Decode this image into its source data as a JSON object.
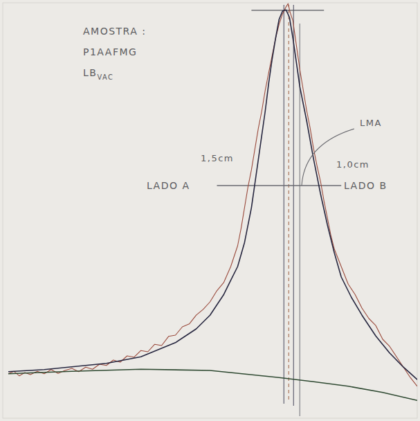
{
  "chart_data": {
    "type": "line",
    "xlim": [
      0,
      600
    ],
    "ylim": [
      0,
      100
    ],
    "tick_labels": false,
    "grid": false,
    "series": [
      {
        "color": "#9a4a3c",
        "line_style": "solid",
        "x": [
          8,
          16,
          24,
          32,
          40,
          50,
          60,
          70,
          80,
          90,
          100,
          110,
          120,
          130,
          140,
          150,
          160,
          170,
          180,
          190,
          200,
          210,
          220,
          230,
          240,
          250,
          260,
          270,
          280,
          290,
          300,
          310,
          320,
          330,
          340,
          345,
          350,
          355,
          360,
          365,
          370,
          375,
          380,
          385,
          390,
          395,
          400,
          405,
          410,
          413,
          416,
          420,
          425,
          430,
          435,
          440,
          445,
          450,
          455,
          460,
          465,
          470,
          475,
          480,
          490,
          500,
          510,
          520,
          530,
          540,
          550,
          560,
          570,
          580,
          590,
          600
        ],
        "values": [
          10.7,
          11.3,
          10.2,
          11.0,
          10.5,
          11.3,
          10.7,
          11.7,
          10.8,
          11.5,
          12.0,
          11.2,
          12.3,
          11.8,
          13.0,
          12.7,
          14.0,
          13.5,
          15.0,
          14.7,
          16.3,
          16.0,
          17.8,
          17.5,
          19.7,
          20.0,
          22.0,
          22.7,
          24.8,
          26.2,
          28.0,
          30.7,
          32.7,
          36.5,
          41.5,
          45.7,
          50.7,
          55.7,
          59.8,
          64.8,
          69.8,
          74.0,
          79.0,
          83.2,
          87.3,
          91.5,
          94.8,
          97.3,
          99.0,
          99.8,
          97.7,
          95.7,
          89.8,
          84.0,
          79.0,
          74.0,
          69.8,
          64.8,
          60.7,
          57.0,
          52.3,
          48.2,
          44.0,
          40.7,
          36.5,
          32.3,
          29.8,
          26.5,
          24.0,
          22.3,
          19.0,
          17.3,
          14.8,
          12.3,
          9.8,
          7.7
        ]
      },
      {
        "color": "#26263f",
        "line_style": "solid",
        "x": [
          8,
          60,
          150,
          200,
          250,
          280,
          300,
          320,
          330,
          340,
          350,
          360,
          370,
          380,
          385,
          390,
          395,
          400,
          405,
          410,
          415,
          420,
          425,
          430,
          440,
          450,
          455,
          460,
          470,
          480,
          490,
          505,
          520,
          540,
          560,
          580,
          600
        ],
        "values": [
          11.2,
          11.7,
          13.2,
          14.8,
          18.2,
          21.5,
          24.8,
          29.8,
          33.2,
          36.5,
          42.3,
          50.7,
          62.3,
          74.0,
          80.7,
          86.5,
          91.5,
          96.0,
          98.0,
          98.3,
          96.5,
          91.5,
          85.7,
          79.8,
          71.5,
          62.3,
          58.2,
          54.0,
          46.5,
          39.8,
          34.0,
          29.0,
          24.8,
          19.8,
          15.7,
          12.3,
          9.3
        ]
      },
      {
        "color": "#2f4a32",
        "line_style": "solid",
        "x": [
          8,
          100,
          200,
          300,
          400,
          450,
          500,
          550,
          600
        ],
        "values": [
          10.7,
          11.3,
          11.8,
          11.5,
          9.8,
          8.8,
          7.7,
          6.2,
          4.3
        ]
      }
    ],
    "hlines": [
      {
        "y": 56.0,
        "x": [
          310,
          490
        ],
        "color": "#6a6a70",
        "line_style": "solid"
      },
      {
        "y": 98.2,
        "x": [
          360,
          465
        ],
        "color": "#55555c",
        "line_style": "solid"
      }
    ],
    "vlines": [
      {
        "x": 407,
        "y": [
          3.5,
          99.5
        ],
        "color": "#6a6a7a",
        "line_style": "solid"
      },
      {
        "x": 414,
        "y": [
          4.5,
          99.5
        ],
        "color": "#b0806a",
        "line_style": "dashed"
      },
      {
        "x": 421,
        "y": [
          3.0,
          99.5
        ],
        "color": "#6a6a7a",
        "line_style": "solid"
      },
      {
        "x": 430,
        "y": [
          0.5,
          95.0
        ],
        "color": "#8a8a90",
        "line_style": "solid"
      }
    ],
    "annotations": [
      {
        "text": "AMOSTRA :"
      },
      {
        "text": "P1AAFMG"
      },
      {
        "text": "LB",
        "subscript": "VAC"
      },
      {
        "text": "1,5cm"
      },
      {
        "text": "1,0cm"
      },
      {
        "text": "LADO A"
      },
      {
        "text": "LADO B"
      },
      {
        "text": "LMA"
      }
    ]
  }
}
